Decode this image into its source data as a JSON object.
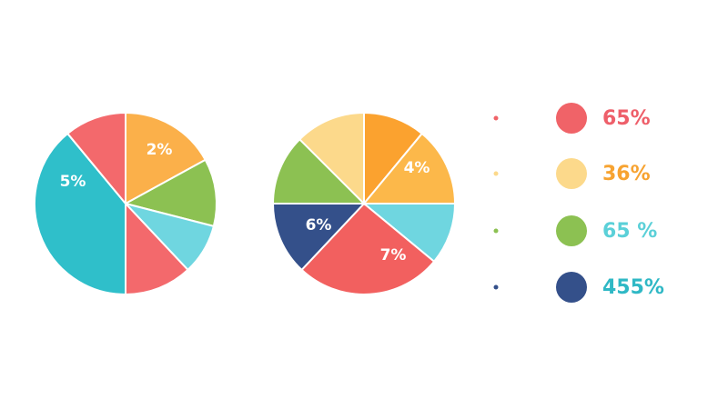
{
  "chart_data": [
    {
      "type": "pie",
      "values": [
        17,
        12,
        9,
        12,
        39,
        11
      ],
      "colors": [
        "#fbb04a",
        "#8cc152",
        "#6fd6e0",
        "#f3696c",
        "#2fbfca",
        "#f3696c"
      ],
      "annotations": [
        "2%",
        "5%"
      ]
    },
    {
      "type": "pie",
      "values": [
        11,
        14,
        11,
        26,
        13,
        12.5,
        12.5
      ],
      "colors": [
        "#fba22f",
        "#fcb84a",
        "#6fd6e0",
        "#f2605f",
        "#34508a",
        "#8cc152",
        "#fcd98b"
      ],
      "annotations": [
        "4%",
        "6%",
        "7%"
      ]
    }
  ],
  "legend": {
    "items": [
      {
        "label": "65%",
        "color": "#f06368",
        "text_color": "#ee5f6a"
      },
      {
        "label": "36%",
        "color": "#fcd98b",
        "text_color": "#f7a331"
      },
      {
        "label": "65 %",
        "color": "#8cc152",
        "text_color": "#5bd0d8"
      },
      {
        "label": "455%",
        "color": "#34508a",
        "text_color": "#2fb8c5"
      }
    ]
  }
}
